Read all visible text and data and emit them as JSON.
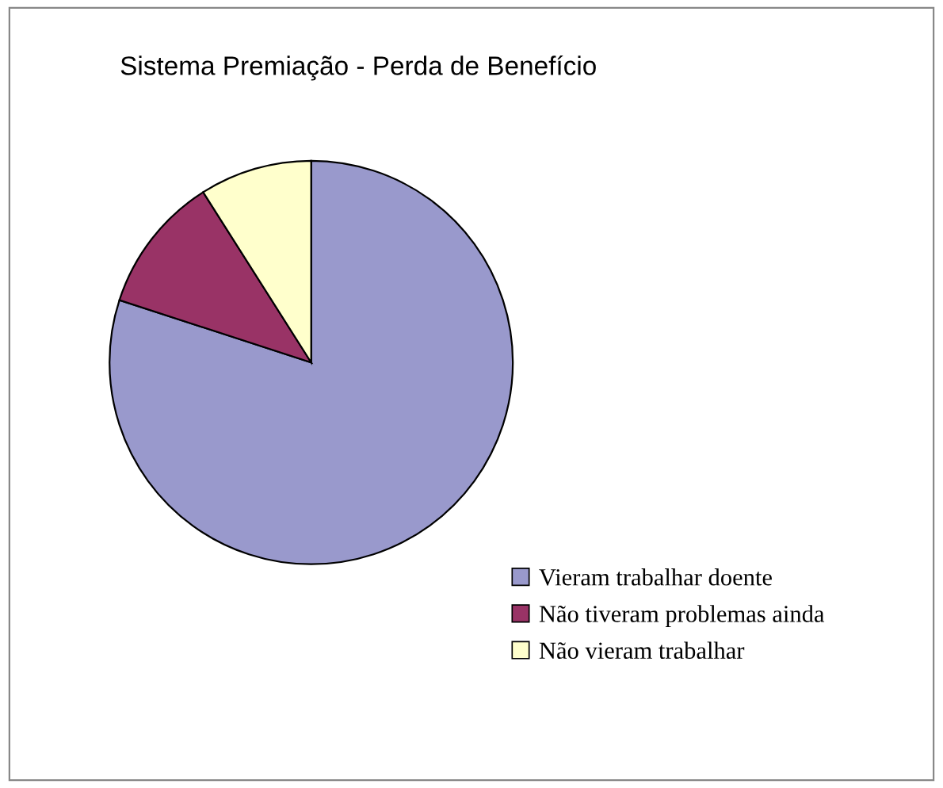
{
  "chart_data": {
    "type": "pie",
    "title": "Sistema Premiação - Perda de Benefício",
    "categories": [
      "Vieram trabalhar doente",
      "Não tiveram problemas ainda",
      "Não vieram trabalhar"
    ],
    "values": [
      80,
      11,
      9
    ],
    "colors": [
      "#9999cc",
      "#993366",
      "#ffffcc"
    ],
    "legend": "bottom right"
  }
}
